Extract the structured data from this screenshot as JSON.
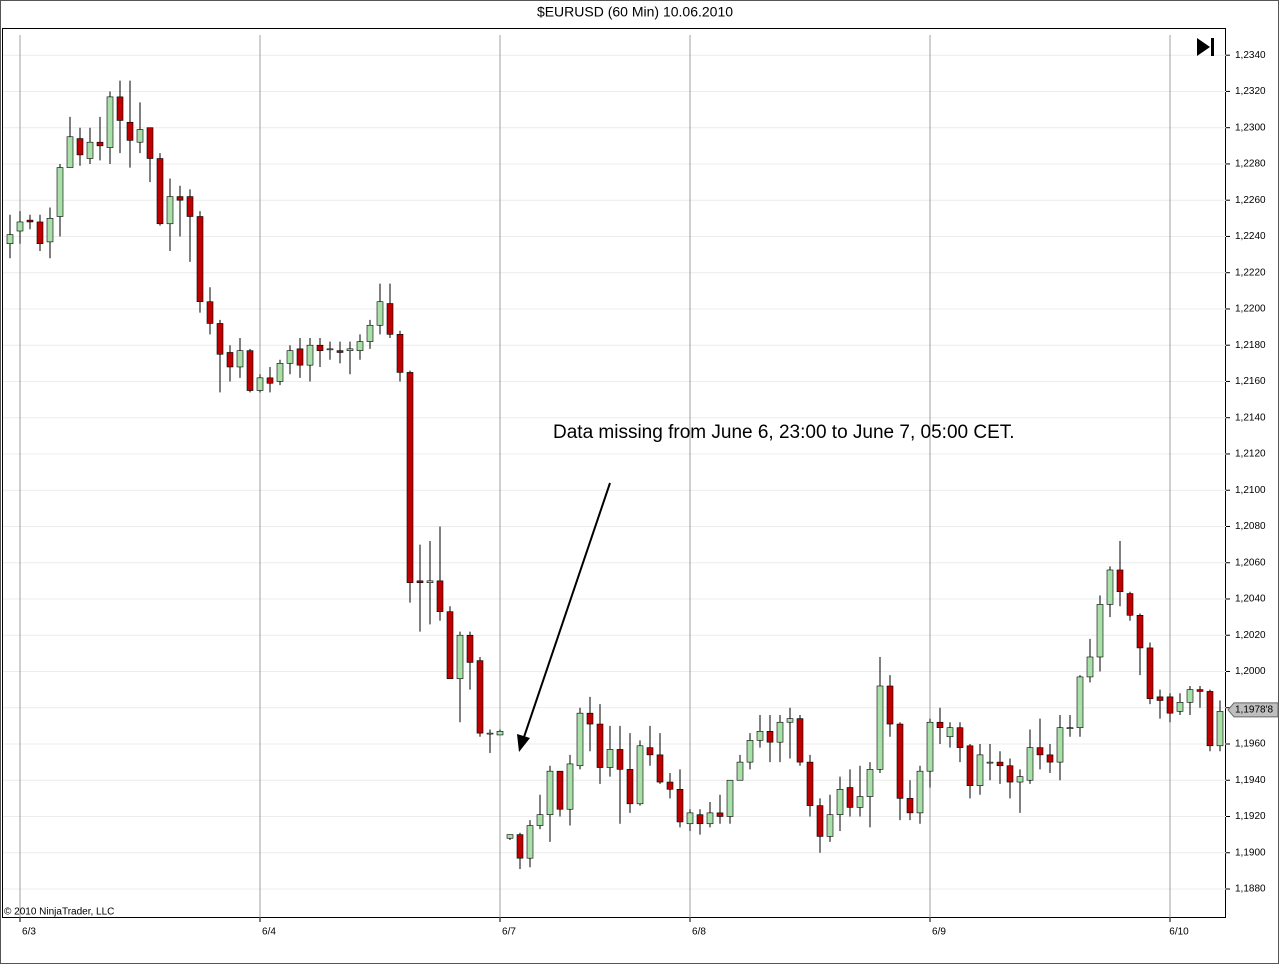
{
  "chart_data": {
    "type": "candlestick",
    "title": "$EURUSD (60 Min)  10.06.2010",
    "annotation": "Data missing from June 6, 23:00 to June 7, 05:00 CET.",
    "copyright": "© 2010 NinjaTrader, LLC",
    "up_color": "#a9dfa9",
    "down_color": "#c00000",
    "grid": true,
    "ylim": [
      1.1864,
      1.2355
    ],
    "yticks": [
      {
        "value": 1.234,
        "label": "1,2340"
      },
      {
        "value": 1.232,
        "label": "1,2320"
      },
      {
        "value": 1.23,
        "label": "1,2300"
      },
      {
        "value": 1.228,
        "label": "1,2280"
      },
      {
        "value": 1.226,
        "label": "1,2260"
      },
      {
        "value": 1.224,
        "label": "1,2240"
      },
      {
        "value": 1.222,
        "label": "1,2220"
      },
      {
        "value": 1.22,
        "label": "1,2200"
      },
      {
        "value": 1.218,
        "label": "1,2180"
      },
      {
        "value": 1.216,
        "label": "1,2160"
      },
      {
        "value": 1.214,
        "label": "1,2140"
      },
      {
        "value": 1.212,
        "label": "1,2120"
      },
      {
        "value": 1.21,
        "label": "1,2100"
      },
      {
        "value": 1.208,
        "label": "1,2080"
      },
      {
        "value": 1.206,
        "label": "1,2060"
      },
      {
        "value": 1.204,
        "label": "1,2040"
      },
      {
        "value": 1.202,
        "label": "1,2020"
      },
      {
        "value": 1.2,
        "label": "1,2000"
      },
      {
        "value": 1.198,
        "label": "1,1980"
      },
      {
        "value": 1.196,
        "label": "1,1960"
      },
      {
        "value": 1.194,
        "label": "1,1940"
      },
      {
        "value": 1.192,
        "label": "1,1920"
      },
      {
        "value": 1.19,
        "label": "1,1900"
      },
      {
        "value": 1.188,
        "label": "1,1880"
      }
    ],
    "last_price": {
      "value": 1.19788,
      "label": "1,1978'8"
    },
    "categories": [
      null,
      "6/3",
      null,
      null,
      null,
      null,
      null,
      null,
      null,
      null,
      null,
      null,
      null,
      null,
      null,
      null,
      null,
      null,
      null,
      null,
      null,
      null,
      null,
      null,
      null,
      "6/4",
      null,
      null,
      null,
      null,
      null,
      null,
      null,
      null,
      null,
      null,
      null,
      null,
      null,
      null,
      null,
      null,
      null,
      null,
      null,
      null,
      null,
      null,
      null,
      "6/7",
      null,
      null,
      null,
      null,
      null,
      null,
      null,
      null,
      null,
      null,
      null,
      null,
      null,
      null,
      null,
      null,
      null,
      null,
      "6/8",
      null,
      null,
      null,
      null,
      null,
      null,
      null,
      null,
      null,
      null,
      null,
      null,
      null,
      null,
      null,
      null,
      null,
      null,
      null,
      null,
      null,
      null,
      null,
      "6/9",
      null,
      null,
      null,
      null,
      null,
      null,
      null,
      null,
      null,
      null,
      null,
      null,
      null,
      null,
      null,
      null,
      null,
      null,
      null,
      null,
      null,
      null,
      null,
      "6/10",
      null,
      null,
      null,
      null,
      null
    ],
    "open": [
      1.2236,
      1.2243,
      1.2249,
      1.2248,
      1.2237,
      1.2251,
      1.2278,
      1.2294,
      1.2283,
      1.2292,
      1.2289,
      1.2317,
      1.2303,
      1.2292,
      1.23,
      1.2283,
      1.2247,
      1.2262,
      1.2262,
      1.2251,
      1.2204,
      1.2192,
      1.2176,
      1.2168,
      1.2177,
      1.2155,
      1.2162,
      1.216,
      1.217,
      1.2178,
      1.2169,
      1.218,
      1.2178,
      1.2177,
      1.2177,
      1.2177,
      1.2182,
      1.2191,
      1.2203,
      1.2186,
      1.2165,
      1.205,
      1.2049,
      1.205,
      1.2033,
      1.1996,
      1.202,
      1.2006,
      1.1966,
      1.1965,
      1.1908,
      1.191,
      1.1897,
      1.1915,
      1.1921,
      1.1945,
      1.1924,
      1.1948,
      1.1977,
      1.1971,
      1.1947,
      1.1957,
      1.1946,
      1.1927,
      1.1958,
      1.1954,
      1.1939,
      1.1935,
      1.1916,
      1.1921,
      1.1916,
      1.1922,
      1.192,
      1.194,
      1.195,
      1.1962,
      1.1967,
      1.1961,
      1.1972,
      1.1974,
      1.195,
      1.1926,
      1.1909,
      1.1921,
      1.1936,
      1.1925,
      1.1931,
      1.1946,
      1.1992,
      1.1971,
      1.193,
      1.1922,
      1.1945,
      1.1972,
      1.1964,
      1.1969,
      1.1959,
      1.1937,
      1.195,
      1.195,
      1.1948,
      1.1939,
      1.194,
      1.1958,
      1.1954,
      1.195,
      1.1969,
      1.1969,
      1.1997,
      1.2008,
      1.2037,
      1.2056,
      1.2043,
      1.2031,
      1.2013,
      1.1986,
      1.1986,
      1.1978,
      1.1983,
      1.199,
      1.1989,
      1.1959
    ],
    "high": [
      1.2252,
      1.2254,
      1.2252,
      1.2252,
      1.2256,
      1.228,
      1.2306,
      1.23,
      1.23,
      1.2306,
      1.232,
      1.2326,
      1.2326,
      1.2314,
      1.23,
      1.2286,
      1.2272,
      1.2268,
      1.2266,
      1.2254,
      1.2212,
      1.2194,
      1.218,
      1.2184,
      1.2178,
      1.2164,
      1.2168,
      1.2172,
      1.218,
      1.2184,
      1.2184,
      1.2184,
      1.2182,
      1.2182,
      1.2182,
      1.2186,
      1.2194,
      1.2214,
      1.2214,
      1.2188,
      1.2166,
      1.207,
      1.2072,
      1.208,
      1.2036,
      1.2022,
      1.2022,
      1.2008,
      1.1968,
      1.1968,
      1.191,
      1.1911,
      1.1918,
      1.1932,
      1.1948,
      1.1945,
      1.1954,
      1.198,
      1.1986,
      1.1982,
      1.197,
      1.197,
      1.1966,
      1.1962,
      1.197,
      1.1966,
      1.1944,
      1.1946,
      1.1924,
      1.1924,
      1.1928,
      1.1932,
      1.194,
      1.1954,
      1.1966,
      1.1976,
      1.1976,
      1.1976,
      1.198,
      1.1976,
      1.1954,
      1.193,
      1.1932,
      1.1942,
      1.1946,
      1.1948,
      1.195,
      1.2008,
      1.1998,
      1.1972,
      1.194,
      1.1948,
      1.1974,
      1.198,
      1.1972,
      1.1972,
      1.196,
      1.196,
      1.196,
      1.1956,
      1.1952,
      1.1946,
      1.1968,
      1.1974,
      1.196,
      1.1976,
      1.1976,
      1.1998,
      1.2018,
      1.2042,
      1.2058,
      1.2072,
      1.2044,
      1.2032,
      1.2016,
      1.199,
      1.1988,
      1.1988,
      1.1992,
      1.1992,
      1.199,
      1.1984
    ],
    "low": [
      1.2228,
      1.2236,
      1.2244,
      1.2232,
      1.2228,
      1.224,
      1.2278,
      1.2279,
      1.228,
      1.2282,
      1.228,
      1.2286,
      1.2278,
      1.2286,
      1.227,
      1.2246,
      1.2232,
      1.224,
      1.2226,
      1.2198,
      1.2186,
      1.2154,
      1.216,
      1.2162,
      1.2154,
      1.2154,
      1.2154,
      1.2158,
      1.2164,
      1.2162,
      1.216,
      1.2168,
      1.2172,
      1.217,
      1.2164,
      1.2172,
      1.2178,
      1.2186,
      1.2184,
      1.216,
      1.2038,
      1.2022,
      1.2026,
      1.2028,
      1.1996,
      1.1972,
      1.199,
      1.1964,
      1.1955,
      1.1965,
      1.1907,
      1.1891,
      1.1892,
      1.1913,
      1.1906,
      1.192,
      1.1915,
      1.1946,
      1.1956,
      1.1938,
      1.1942,
      1.1916,
      1.1922,
      1.1926,
      1.1948,
      1.1938,
      1.193,
      1.1914,
      1.1912,
      1.191,
      1.1914,
      1.1916,
      1.1916,
      1.194,
      1.1946,
      1.1958,
      1.195,
      1.195,
      1.1952,
      1.1948,
      1.192,
      1.19,
      1.1906,
      1.1912,
      1.192,
      1.192,
      1.1914,
      1.1944,
      1.1964,
      1.1918,
      1.1918,
      1.1916,
      1.1936,
      1.196,
      1.1958,
      1.195,
      1.193,
      1.1932,
      1.194,
      1.1938,
      1.193,
      1.1922,
      1.1938,
      1.1946,
      1.1944,
      1.194,
      1.1964,
      1.1964,
      1.1994,
      1.2,
      1.203,
      1.2036,
      1.2028,
      1.1998,
      1.1982,
      1.1974,
      1.1972,
      1.1976,
      1.1976,
      1.198,
      1.1956,
      1.1956
    ],
    "close": [
      1.2241,
      1.2248,
      1.2248,
      1.2236,
      1.225,
      1.2278,
      1.2295,
      1.2285,
      1.2292,
      1.229,
      1.2317,
      1.2304,
      1.2293,
      1.2299,
      1.2283,
      1.2247,
      1.2262,
      1.226,
      1.2251,
      1.2204,
      1.2192,
      1.2175,
      1.2168,
      1.2177,
      1.2155,
      1.2162,
      1.2159,
      1.217,
      1.2177,
      1.2169,
      1.218,
      1.2177,
      1.2178,
      1.2176,
      1.2178,
      1.2182,
      1.2191,
      1.2204,
      1.2186,
      1.2165,
      1.2049,
      1.2049,
      1.205,
      1.2033,
      1.1996,
      1.202,
      1.2005,
      1.1966,
      1.1966,
      1.1967,
      1.191,
      1.1897,
      1.1915,
      1.1921,
      1.1945,
      1.1924,
      1.1949,
      1.1977,
      1.1971,
      1.1947,
      1.1957,
      1.1946,
      1.1927,
      1.1959,
      1.1954,
      1.1939,
      1.1935,
      1.1917,
      1.1922,
      1.1916,
      1.1922,
      1.192,
      1.194,
      1.195,
      1.1962,
      1.1967,
      1.1961,
      1.1972,
      1.1974,
      1.195,
      1.1926,
      1.1909,
      1.1921,
      1.1935,
      1.1925,
      1.1931,
      1.1946,
      1.1992,
      1.1971,
      1.193,
      1.1922,
      1.1945,
      1.1972,
      1.1969,
      1.1969,
      1.1958,
      1.1937,
      1.1954,
      1.195,
      1.1948,
      1.1939,
      1.1942,
      1.1958,
      1.1954,
      1.195,
      1.1969,
      1.1969,
      1.1997,
      1.2008,
      1.2037,
      1.2056,
      1.2044,
      1.2031,
      1.2013,
      1.1985,
      1.1984,
      1.1977,
      1.1983,
      1.199,
      1.1989,
      1.1959,
      1.1978
    ]
  }
}
